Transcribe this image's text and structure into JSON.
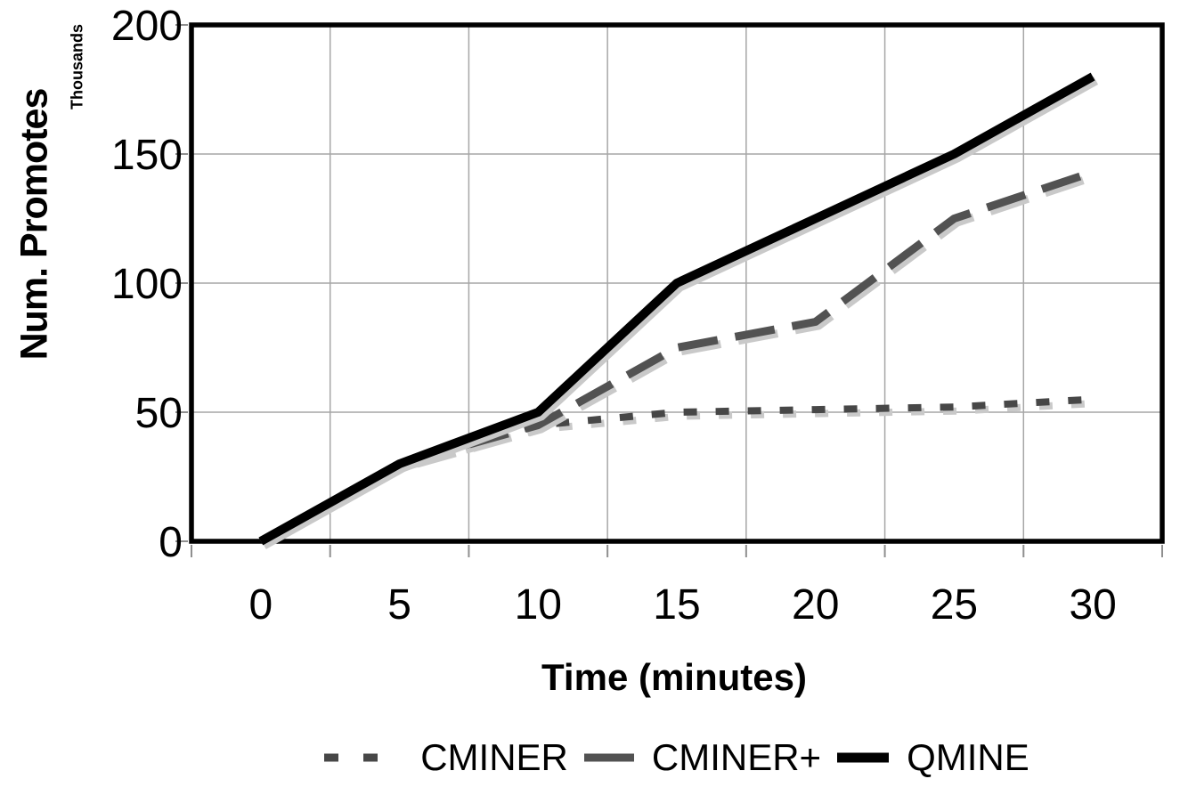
{
  "chart_data": {
    "type": "line",
    "title": "",
    "xlabel": "Time (minutes)",
    "ylabel": "Num. Promotes",
    "y_units_label": "Thousands",
    "x": [
      0,
      5,
      10,
      15,
      20,
      25,
      30
    ],
    "x_tick_labels": [
      "0",
      "5",
      "10",
      "15",
      "20",
      "25",
      "30"
    ],
    "y_ticks": [
      0,
      50,
      100,
      150,
      200
    ],
    "ylim": [
      0,
      200
    ],
    "grid": true,
    "legend_position": "bottom",
    "series": [
      {
        "name": "CMINER",
        "style": "dotted",
        "color": "#474747",
        "values": [
          0,
          30,
          45,
          50,
          51,
          52,
          55
        ]
      },
      {
        "name": "CMINER+",
        "style": "dashed",
        "color": "#525252",
        "values": [
          0,
          30,
          45,
          75,
          85,
          125,
          143
        ]
      },
      {
        "name": "QMINE",
        "style": "solid",
        "color": "#000000",
        "values": [
          0,
          30,
          50,
          100,
          125,
          150,
          180
        ]
      }
    ],
    "colors": {
      "axis_border": "#000000",
      "gridline": "#a6a6a6",
      "tick": "#8f8f8f",
      "shadow": "#c9c9c9",
      "text": "#000000"
    }
  }
}
